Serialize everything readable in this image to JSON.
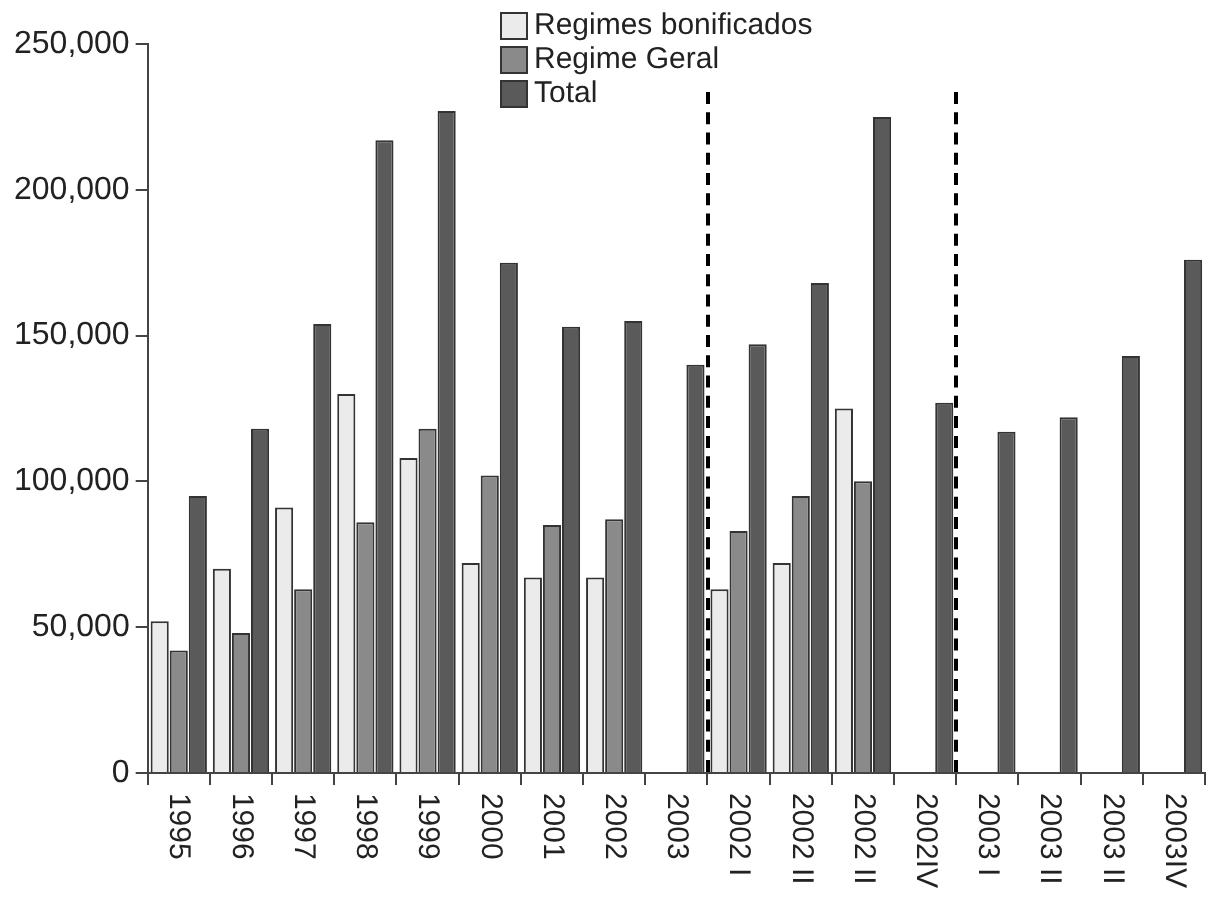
{
  "chart_data": {
    "type": "bar",
    "categories": [
      "1995",
      "1996",
      "1997",
      "1998",
      "1999",
      "2000",
      "2001",
      "2002",
      "2003",
      "2002 I",
      "2002 II",
      "2002 II",
      "2002IV",
      "2003 I",
      "2003 II",
      "2003 II",
      "2003IV"
    ],
    "series": [
      {
        "name": "Regimes bonificados",
        "color": "#ebebeb",
        "values": [
          52000,
          70000,
          91000,
          130000,
          108000,
          72000,
          67000,
          67000,
          null,
          63000,
          72000,
          125000,
          null,
          null,
          null,
          null,
          null
        ]
      },
      {
        "name": "Regime Geral",
        "color": "#8a8a8a",
        "values": [
          42000,
          48000,
          63000,
          86000,
          118000,
          102000,
          85000,
          87000,
          null,
          83000,
          95000,
          100000,
          null,
          null,
          null,
          null,
          null
        ]
      },
      {
        "name": "Total",
        "color": "#5a5a5a",
        "values": [
          95000,
          118000,
          154000,
          217000,
          227000,
          175000,
          153000,
          155000,
          140000,
          147000,
          168000,
          225000,
          127000,
          117000,
          122000,
          143000,
          176000
        ]
      }
    ],
    "ylim": [
      0,
      250000
    ],
    "yticks": [
      {
        "value": 0,
        "label": "0"
      },
      {
        "value": 50000,
        "label": "50,000"
      },
      {
        "value": 100000,
        "label": "100,000"
      },
      {
        "value": 150000,
        "label": "150,000"
      },
      {
        "value": 200000,
        "label": "200,000"
      },
      {
        "value": 250000,
        "label": "250,000"
      }
    ],
    "grid": false,
    "legend": "top"
  }
}
